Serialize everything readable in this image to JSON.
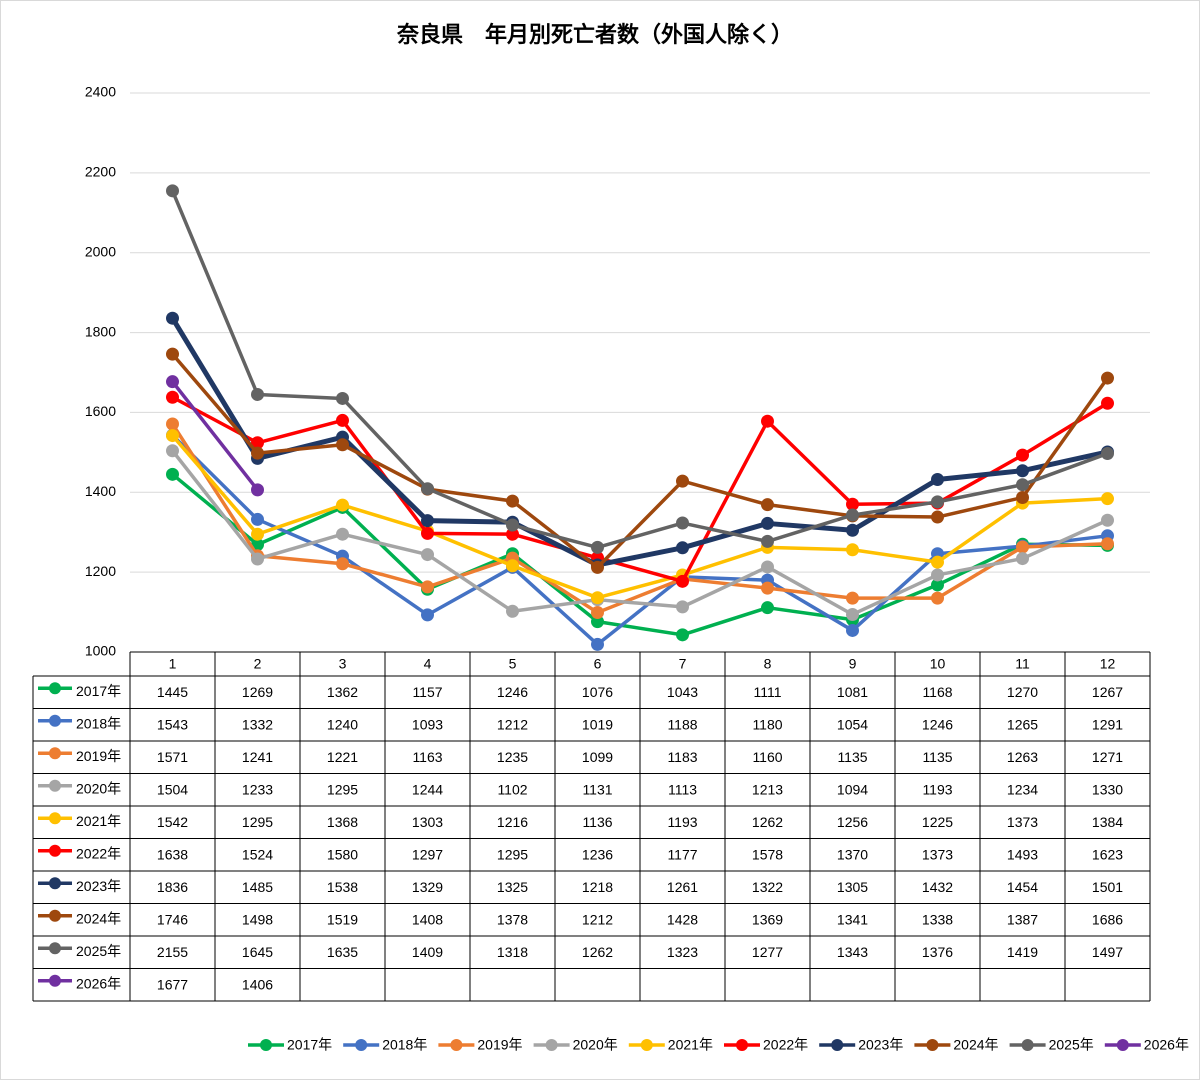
{
  "chart_data": {
    "type": "line",
    "title": "奈良県　年月別死亡者数（外国人除く）",
    "categories": [
      "1",
      "2",
      "3",
      "4",
      "5",
      "6",
      "7",
      "8",
      "9",
      "10",
      "11",
      "12"
    ],
    "ylim": [
      1000,
      2400
    ],
    "yticks": [
      1000,
      1200,
      1400,
      1600,
      1800,
      2000,
      2200,
      2400
    ],
    "grid": true,
    "legend": "bottom",
    "series": [
      {
        "name": "2017年",
        "color": "#00b050",
        "values": [
          1445,
          1269,
          1362,
          1157,
          1246,
          1076,
          1043,
          1111,
          1081,
          1168,
          1270,
          1267
        ]
      },
      {
        "name": "2018年",
        "color": "#4472c4",
        "values": [
          1543,
          1332,
          1240,
          1093,
          1212,
          1019,
          1188,
          1180,
          1054,
          1246,
          1265,
          1291
        ]
      },
      {
        "name": "2019年",
        "color": "#ed7d31",
        "values": [
          1571,
          1241,
          1221,
          1163,
          1235,
          1099,
          1183,
          1160,
          1135,
          1135,
          1263,
          1271
        ]
      },
      {
        "name": "2020年",
        "color": "#a5a5a5",
        "values": [
          1504,
          1233,
          1295,
          1244,
          1102,
          1131,
          1113,
          1213,
          1094,
          1193,
          1234,
          1330
        ]
      },
      {
        "name": "2021年",
        "color": "#ffc000",
        "values": [
          1542,
          1295,
          1368,
          1303,
          1216,
          1136,
          1193,
          1262,
          1256,
          1225,
          1373,
          1384
        ]
      },
      {
        "name": "2022年",
        "color": "#ff0000",
        "values": [
          1638,
          1524,
          1580,
          1297,
          1295,
          1236,
          1177,
          1578,
          1370,
          1373,
          1493,
          1623
        ]
      },
      {
        "name": "2023年",
        "color": "#203864",
        "values": [
          1836,
          1485,
          1538,
          1329,
          1325,
          1218,
          1261,
          1322,
          1305,
          1432,
          1454,
          1501
        ]
      },
      {
        "name": "2024年",
        "color": "#9e480e",
        "values": [
          1746,
          1498,
          1519,
          1408,
          1378,
          1212,
          1428,
          1369,
          1341,
          1338,
          1387,
          1686
        ]
      },
      {
        "name": "2025年",
        "color": "#636363",
        "values": [
          2155,
          1645,
          1635,
          1409,
          1318,
          1262,
          1323,
          1277,
          1343,
          1376,
          1419,
          1497
        ]
      },
      {
        "name": "2026年",
        "color": "#7030a0",
        "values": [
          1677,
          1406,
          null,
          null,
          null,
          null,
          null,
          null,
          null,
          null,
          null,
          null
        ]
      }
    ]
  }
}
